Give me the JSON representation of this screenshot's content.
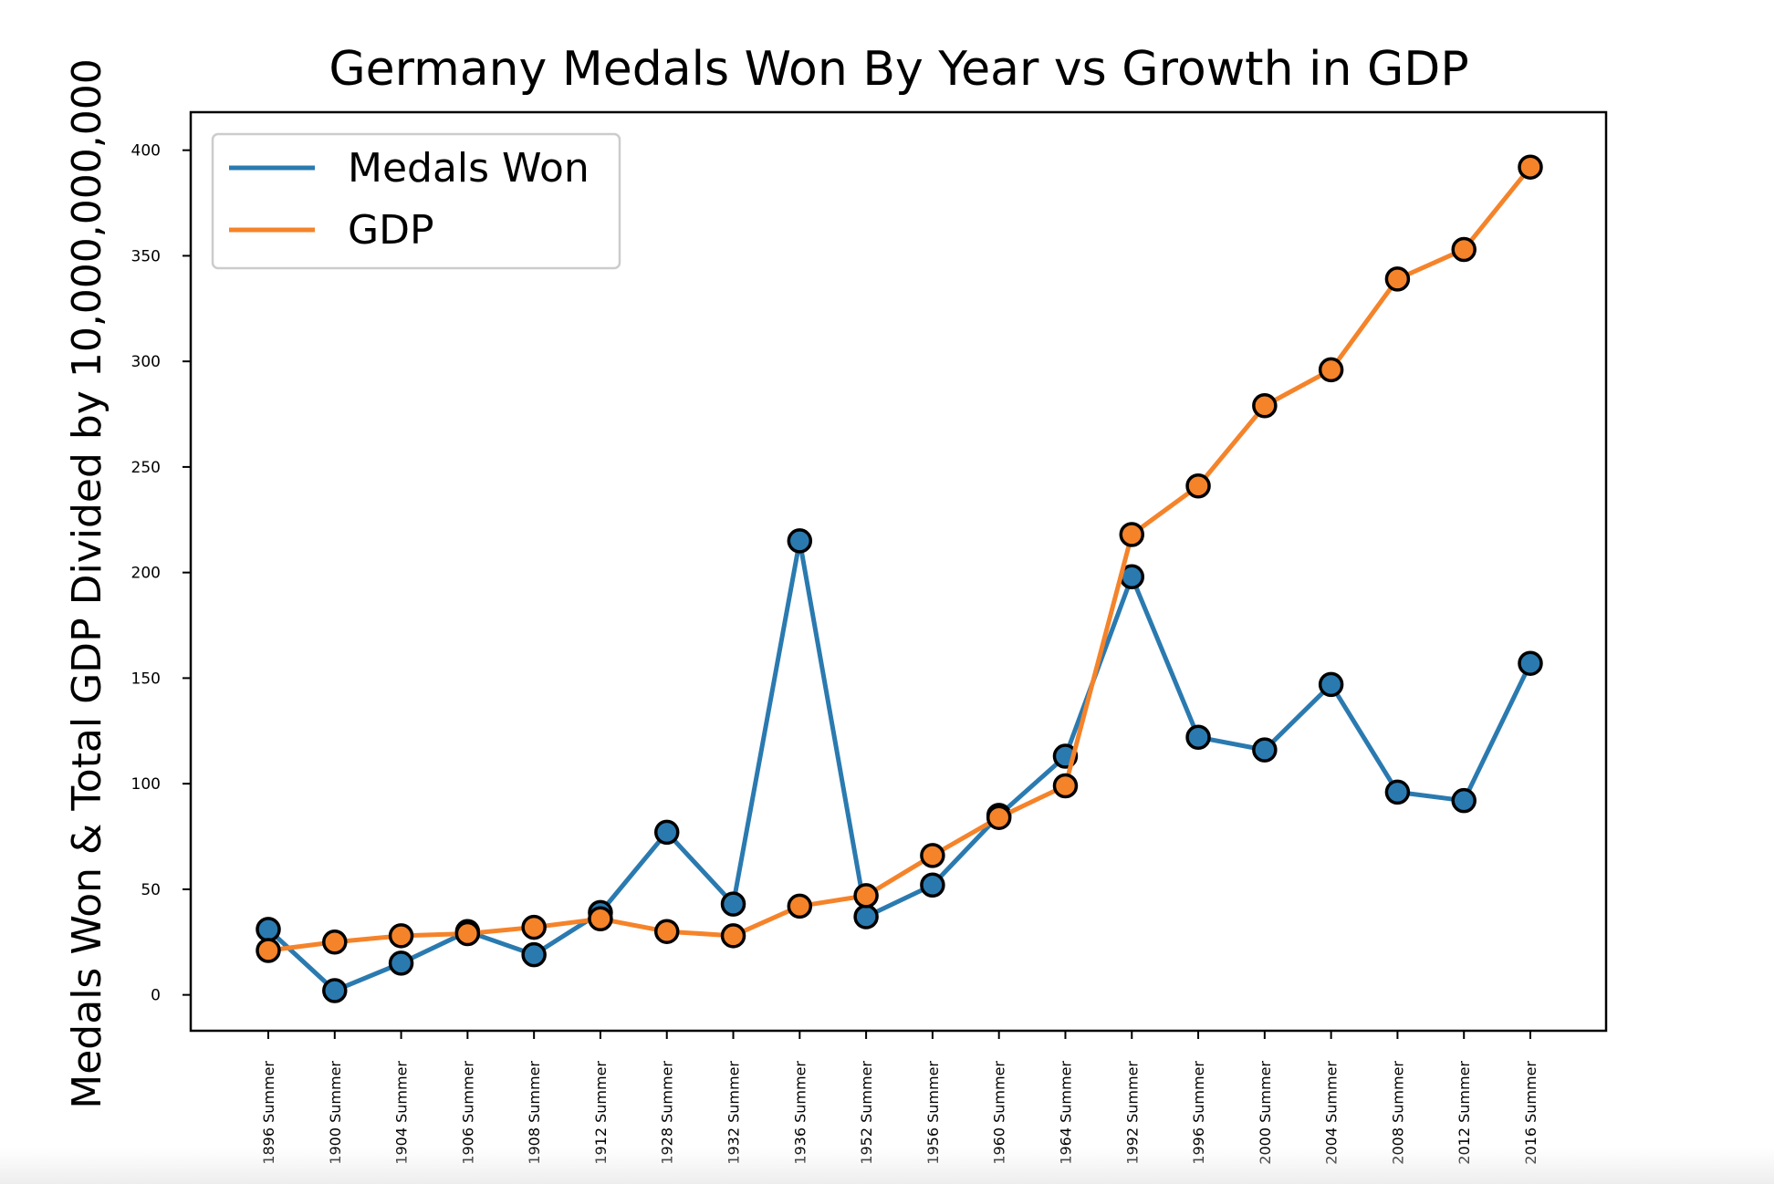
{
  "chart_data": {
    "type": "line",
    "title": "Germany Medals Won By Year vs Growth in GDP",
    "xlabel": "",
    "ylabel": "Medals Won & Total GDP Divided by 10,000,000,000",
    "ylim": [
      -17,
      418
    ],
    "yticks": [
      0,
      50,
      100,
      150,
      200,
      250,
      300,
      350,
      400
    ],
    "categories": [
      "1896 Summer",
      "1900 Summer",
      "1904 Summer",
      "1906 Summer",
      "1908 Summer",
      "1912 Summer",
      "1928 Summer",
      "1932 Summer",
      "1936 Summer",
      "1952 Summer",
      "1956 Summer",
      "1960 Summer",
      "1964 Summer",
      "1992 Summer",
      "1996 Summer",
      "2000 Summer",
      "2004 Summer",
      "2008 Summer",
      "2012 Summer",
      "2016 Summer"
    ],
    "series": [
      {
        "name": "Medals Won",
        "color": "#2a7ab0",
        "values": [
          31,
          2,
          15,
          30,
          19,
          39,
          77,
          43,
          215,
          37,
          52,
          85,
          113,
          198,
          122,
          116,
          147,
          96,
          92,
          157
        ]
      },
      {
        "name": "GDP",
        "color": "#f5832a",
        "values": [
          21,
          25,
          28,
          29,
          32,
          36,
          30,
          28,
          42,
          47,
          66,
          84,
          99,
          218,
          241,
          279,
          296,
          339,
          353,
          392
        ]
      }
    ],
    "legend_position": "top-left",
    "grid": false
  }
}
